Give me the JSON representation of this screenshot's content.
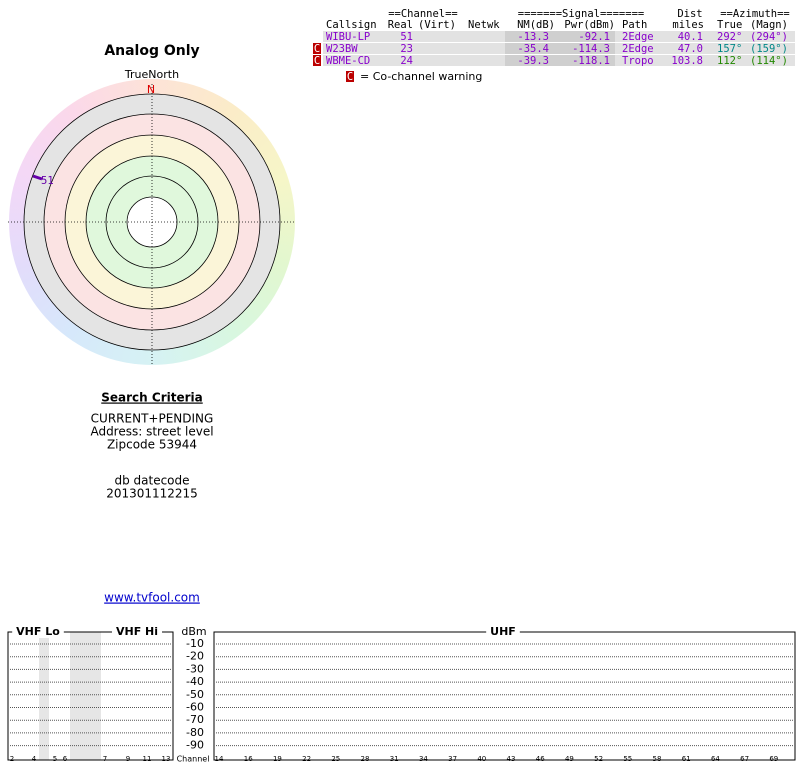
{
  "header": {
    "title": "Analog Only",
    "north_label": "TrueNorth",
    "north_mark": "N"
  },
  "table": {
    "group_headers": [
      "==Channel==",
      "=======Signal=======",
      "Dist",
      "==Azimuth=="
    ],
    "columns": [
      "Callsign",
      "Real",
      "(Virt)",
      "Netwk",
      "NM(dB)",
      "Pwr(dBm)",
      "Path",
      "miles",
      "True",
      "(Magn)"
    ],
    "rows": [
      {
        "callsign": "WIBU-LP",
        "real": "51",
        "nm": "-13.3",
        "pwr": "-92.1",
        "path": "2Edge",
        "dist": "40.1",
        "az_true": "292°",
        "az_magn": "(294°)"
      },
      {
        "warning": "C",
        "callsign": "W23BW",
        "real": "23",
        "nm": "-35.4",
        "pwr": "-114.3",
        "path": "2Edge",
        "dist": "47.0",
        "az_true": "157°",
        "az_magn": "(159°)"
      },
      {
        "warning": "C",
        "callsign": "WBME-CD",
        "real": "24",
        "nm": "-39.3",
        "pwr": "-118.1",
        "path": "Tropo",
        "dist": "103.8",
        "az_true": "112°",
        "az_magn": "(114°)"
      }
    ]
  },
  "legend": {
    "mark": "C",
    "text": "= Co-channel warning"
  },
  "criteria": {
    "title": "Search Criteria",
    "lines": [
      "CURRENT+PENDING",
      "Address: street level",
      "Zipcode 53944"
    ],
    "db_label": "db datecode",
    "db_value": "201301112215"
  },
  "link": "www.tvfool.com",
  "band_chart": {
    "vhf_lo": "VHF Lo",
    "vhf_hi": "VHF Hi",
    "uhf": "UHF",
    "unit": "dBm",
    "levels": [
      "-10",
      "-20",
      "-30",
      "-40",
      "-50",
      "-60",
      "-70",
      "-80",
      "-90"
    ],
    "channel_label": "Channel",
    "vhf_channels": [
      "2",
      "4",
      "5",
      "6",
      "7",
      "9",
      "11",
      "13"
    ],
    "uhf_channels": [
      "14",
      "16",
      "19",
      "22",
      "25",
      "28",
      "31",
      "34",
      "37",
      "40",
      "43",
      "46",
      "49",
      "52",
      "55",
      "58",
      "61",
      "64",
      "67",
      "69"
    ]
  }
}
